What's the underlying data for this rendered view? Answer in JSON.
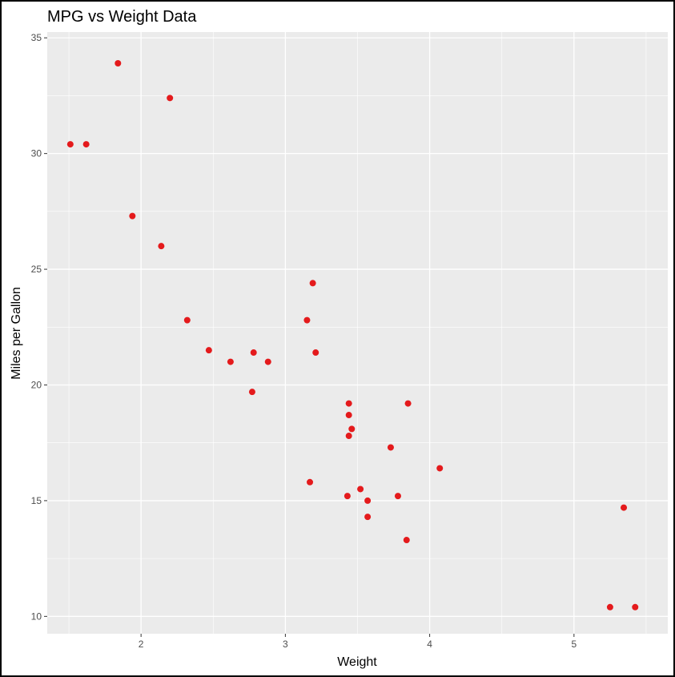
{
  "colors": {
    "panel_background": "#ebebeb",
    "grid": "#ffffff",
    "point": "#e41a1c",
    "tick": "#333333"
  },
  "chart_data": {
    "type": "scatter",
    "title": "MPG vs Weight Data",
    "xlabel": "Weight",
    "ylabel": "Miles per Gallon",
    "xlim": [
      1.35,
      5.65
    ],
    "ylim": [
      9.25,
      35.25
    ],
    "xticks": [
      2,
      3,
      4,
      5
    ],
    "yticks": [
      10,
      15,
      20,
      25,
      30,
      35
    ],
    "grid": true,
    "series": [
      {
        "points": [
          {
            "x": 1.51,
            "y": 30.4
          },
          {
            "x": 1.62,
            "y": 30.4
          },
          {
            "x": 1.84,
            "y": 33.9
          },
          {
            "x": 1.94,
            "y": 27.3
          },
          {
            "x": 2.14,
            "y": 26.0
          },
          {
            "x": 2.2,
            "y": 32.4
          },
          {
            "x": 2.32,
            "y": 22.8
          },
          {
            "x": 2.47,
            "y": 21.5
          },
          {
            "x": 2.62,
            "y": 21.0
          },
          {
            "x": 2.77,
            "y": 19.7
          },
          {
            "x": 2.78,
            "y": 21.4
          },
          {
            "x": 2.88,
            "y": 21.0
          },
          {
            "x": 3.15,
            "y": 22.8
          },
          {
            "x": 3.17,
            "y": 15.8
          },
          {
            "x": 3.19,
            "y": 24.4
          },
          {
            "x": 3.21,
            "y": 21.4
          },
          {
            "x": 3.44,
            "y": 18.7
          },
          {
            "x": 3.44,
            "y": 19.2
          },
          {
            "x": 3.44,
            "y": 17.8
          },
          {
            "x": 3.43,
            "y": 15.2
          },
          {
            "x": 3.46,
            "y": 18.1
          },
          {
            "x": 3.52,
            "y": 15.5
          },
          {
            "x": 3.57,
            "y": 15.0
          },
          {
            "x": 3.57,
            "y": 14.3
          },
          {
            "x": 3.73,
            "y": 17.3
          },
          {
            "x": 3.78,
            "y": 15.2
          },
          {
            "x": 3.84,
            "y": 13.3
          },
          {
            "x": 3.85,
            "y": 19.2
          },
          {
            "x": 4.07,
            "y": 16.4
          },
          {
            "x": 5.25,
            "y": 10.4
          },
          {
            "x": 5.345,
            "y": 14.7
          },
          {
            "x": 5.424,
            "y": 10.4
          }
        ]
      }
    ]
  }
}
